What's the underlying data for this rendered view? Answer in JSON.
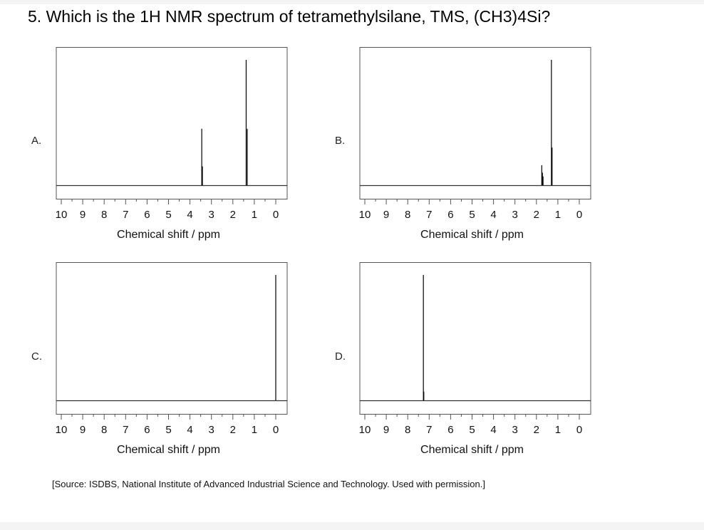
{
  "question": "5. Which is the 1H NMR spectrum of tetramethylsilane, TMS, (CH3)4Si?",
  "source": "[Source: ISDBS, National Institute of Advanced Industrial Science and Technology. Used with permission.]",
  "chart_data": [
    {
      "option": "A.",
      "type": "line",
      "xlabel": "Chemical shift / ppm",
      "xlim": [
        10,
        0
      ],
      "ticks": [
        "10",
        "9",
        "8",
        "7",
        "6",
        "5",
        "4",
        "3",
        "2",
        "1",
        "0"
      ],
      "peaks": [
        {
          "ppm": 3.45,
          "height": 0.45
        },
        {
          "ppm": 3.42,
          "height": 0.15
        },
        {
          "ppm": 1.38,
          "height": 1.0
        },
        {
          "ppm": 1.33,
          "height": 0.45
        }
      ]
    },
    {
      "option": "B.",
      "type": "line",
      "xlabel": "Chemical shift / ppm",
      "xlim": [
        10,
        0
      ],
      "ticks": [
        "10",
        "9",
        "8",
        "7",
        "6",
        "5",
        "4",
        "3",
        "2",
        "1",
        "0"
      ],
      "peaks": [
        {
          "ppm": 1.75,
          "height": 0.16
        },
        {
          "ppm": 1.72,
          "height": 0.1
        },
        {
          "ppm": 1.69,
          "height": 0.07
        },
        {
          "ppm": 1.3,
          "height": 1.0
        },
        {
          "ppm": 1.27,
          "height": 0.3
        }
      ]
    },
    {
      "option": "C.",
      "type": "line",
      "xlabel": "Chemical shift / ppm",
      "xlim": [
        10,
        0
      ],
      "ticks": [
        "10",
        "9",
        "8",
        "7",
        "6",
        "5",
        "4",
        "3",
        "2",
        "1",
        "0"
      ],
      "peaks": [
        {
          "ppm": 0.0,
          "height": 1.0
        }
      ]
    },
    {
      "option": "D.",
      "type": "line",
      "xlabel": "Chemical shift / ppm",
      "xlim": [
        10,
        0
      ],
      "ticks": [
        "10",
        "9",
        "8",
        "7",
        "6",
        "5",
        "4",
        "3",
        "2",
        "1",
        "0"
      ],
      "peaks": [
        {
          "ppm": 7.27,
          "height": 1.0
        },
        {
          "ppm": 7.25,
          "height": 0.07
        }
      ]
    }
  ]
}
